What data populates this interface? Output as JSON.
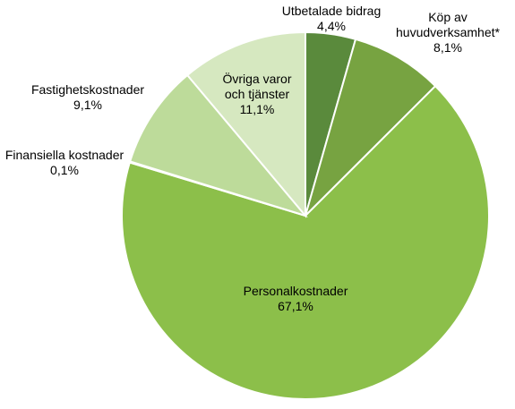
{
  "chart_data": {
    "type": "pie",
    "title": "",
    "slices": [
      {
        "label_lines": [
          "Utbetalade bidrag"
        ],
        "value": 4.4,
        "value_label": "4,4%",
        "color": "#5a8a3c"
      },
      {
        "label_lines": [
          "Köp av",
          "huvudverksamhet*"
        ],
        "value": 8.1,
        "value_label": "8,1%",
        "color": "#77a341"
      },
      {
        "label_lines": [
          "Personalkostnader"
        ],
        "value": 67.1,
        "value_label": "67,1%",
        "color": "#8cbf4a"
      },
      {
        "label_lines": [
          "Finansiella kostnader"
        ],
        "value": 0.1,
        "value_label": "0,1%",
        "color": "#a6cf7a"
      },
      {
        "label_lines": [
          "Fastighetskostnader"
        ],
        "value": 9.1,
        "value_label": "9,1%",
        "color": "#bddb9a"
      },
      {
        "label_lines": [
          "Övriga varor",
          "och tjänster"
        ],
        "value": 11.1,
        "value_label": "11,1%",
        "color": "#d6e8c0"
      }
    ],
    "start_angle": "12 o'clock",
    "direction": "clockwise",
    "legend": "none"
  }
}
